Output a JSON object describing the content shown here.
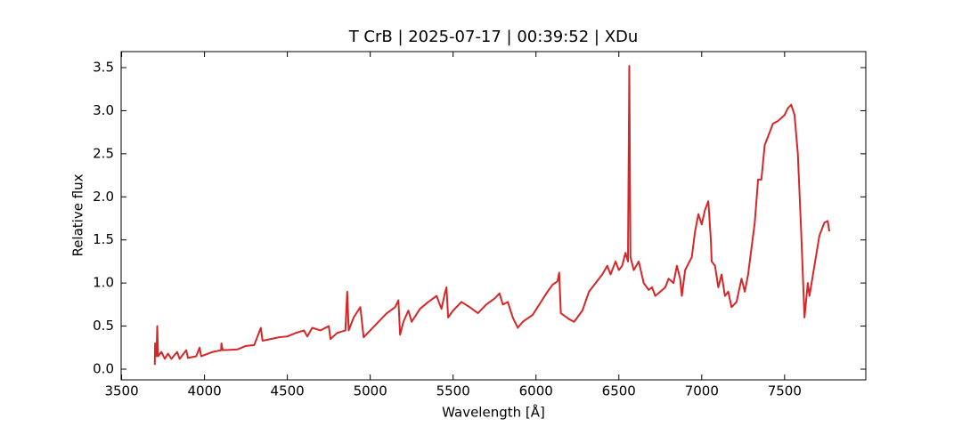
{
  "chart_data": {
    "type": "line",
    "title": "T CrB | 2025-07-17 | 00:39:52 | XDu",
    "x_label": "Wavelength [Å]",
    "y_label": "Relative flux",
    "xlim": [
      3497,
      7990
    ],
    "ylim": [
      -0.124,
      3.686
    ],
    "xticks": [
      3500,
      4000,
      4500,
      5000,
      5500,
      6000,
      6500,
      7000,
      7500
    ],
    "yticks": [
      {
        "value": 0,
        "label": "0.0"
      },
      0.5,
      {
        "value": 1,
        "label": "1.0"
      },
      1.5,
      {
        "value": 2,
        "label": "2.0"
      },
      2.5,
      {
        "value": 3,
        "label": "3.0"
      },
      3.5
    ],
    "series": [
      {
        "color": "#d62728",
        "x": [
          3700,
          3702,
          3710,
          3715,
          3720,
          3740,
          3760,
          3780,
          3800,
          3835,
          3850,
          3890,
          3900,
          3950,
          3970,
          3980,
          4050,
          4100,
          4102,
          4110,
          4200,
          4250,
          4300,
          4340,
          4350,
          4400,
          4450,
          4500,
          4550,
          4600,
          4620,
          4650,
          4700,
          4750,
          4760,
          4800,
          4850,
          4861,
          4870,
          4900,
          4940,
          4950,
          4960,
          5000,
          5050,
          5100,
          5150,
          5170,
          5180,
          5200,
          5230,
          5250,
          5300,
          5350,
          5400,
          5430,
          5450,
          5460,
          5470,
          5500,
          5550,
          5600,
          5650,
          5700,
          5750,
          5780,
          5800,
          5830,
          5860,
          5890,
          5920,
          5980,
          6020,
          6070,
          6100,
          6130,
          6140,
          6150,
          6200,
          6230,
          6280,
          6320,
          6360,
          6400,
          6430,
          6450,
          6480,
          6500,
          6520,
          6540,
          6555,
          6563,
          6570,
          6590,
          6620,
          6650,
          6680,
          6700,
          6720,
          6750,
          6780,
          6800,
          6830,
          6850,
          6870,
          6880,
          6900,
          6940,
          6960,
          6980,
          7000,
          7020,
          7040,
          7055,
          7060,
          7080,
          7100,
          7120,
          7140,
          7160,
          7180,
          7210,
          7240,
          7260,
          7280,
          7300,
          7320,
          7340,
          7360,
          7380,
          7400,
          7430,
          7460,
          7500,
          7520,
          7540,
          7560,
          7580,
          7600,
          7620,
          7640,
          7650,
          7680,
          7710,
          7740,
          7760,
          7770
        ],
        "values": [
          0.05,
          0.3,
          0.15,
          0.5,
          0.15,
          0.2,
          0.12,
          0.18,
          0.12,
          0.2,
          0.12,
          0.22,
          0.13,
          0.15,
          0.25,
          0.15,
          0.2,
          0.22,
          0.3,
          0.22,
          0.23,
          0.27,
          0.28,
          0.48,
          0.33,
          0.35,
          0.37,
          0.38,
          0.42,
          0.45,
          0.38,
          0.48,
          0.45,
          0.5,
          0.35,
          0.42,
          0.45,
          0.9,
          0.45,
          0.6,
          0.72,
          0.55,
          0.37,
          0.45,
          0.55,
          0.65,
          0.72,
          0.8,
          0.4,
          0.55,
          0.68,
          0.55,
          0.7,
          0.78,
          0.85,
          0.7,
          0.88,
          0.95,
          0.6,
          0.68,
          0.78,
          0.72,
          0.65,
          0.75,
          0.82,
          0.88,
          0.75,
          0.78,
          0.6,
          0.48,
          0.55,
          0.63,
          0.75,
          0.9,
          0.98,
          1.02,
          1.12,
          0.65,
          0.58,
          0.55,
          0.68,
          0.9,
          1.0,
          1.1,
          1.2,
          1.1,
          1.25,
          1.15,
          1.2,
          1.35,
          1.25,
          3.52,
          1.3,
          1.15,
          1.25,
          1.0,
          0.92,
          0.95,
          0.85,
          0.9,
          0.95,
          1.05,
          1.0,
          1.2,
          1.05,
          0.85,
          1.15,
          1.3,
          1.6,
          1.8,
          1.68,
          1.85,
          1.95,
          1.5,
          1.25,
          1.2,
          0.95,
          1.1,
          0.85,
          0.9,
          0.72,
          0.78,
          1.05,
          0.9,
          1.1,
          1.4,
          1.7,
          2.2,
          2.2,
          2.6,
          2.7,
          2.85,
          2.88,
          2.95,
          3.03,
          3.07,
          2.95,
          2.5,
          1.6,
          0.6,
          1.0,
          0.85,
          1.2,
          1.55,
          1.7,
          1.72,
          1.6
        ]
      }
    ]
  }
}
